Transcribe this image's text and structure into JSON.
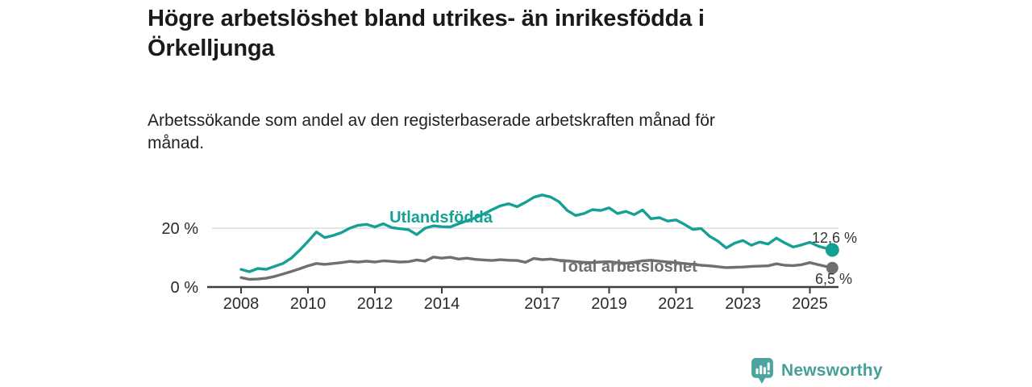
{
  "header": {
    "title": "Högre arbetslöshet bland utrikes- än inrikesfödda i\nÖrkelljunga",
    "subtitle": "Arbetssökande som andel av den registerbaserade arbetskraften månad för\nmånad."
  },
  "colors": {
    "accent_teal": "#14a193",
    "series_gray": "#6f6f6f",
    "brand_teal": "#4aa59e",
    "grid": "#dcdcdc",
    "axis": "#3d3d3d",
    "annotation_text": "#333333"
  },
  "chart_data": {
    "type": "line",
    "title": "Högre arbetslöshet bland utrikes- än inrikesfödda i Örkelljunga",
    "subtitle": "Arbetssökande som andel av den registerbaserade arbetskraften månad för månad.",
    "xlabel": "",
    "ylabel": "",
    "x_range": [
      2008,
      2025.67
    ],
    "ylim": [
      0,
      34
    ],
    "x_ticks": [
      2008,
      2010,
      2012,
      2014,
      2017,
      2019,
      2021,
      2023,
      2025
    ],
    "y_ticks": [
      {
        "value": 0,
        "label": "0 %"
      },
      {
        "value": 20,
        "label": "20 %"
      }
    ],
    "grid": "single horizontal gridline at 20 %",
    "legend_position": "inline labels next to lines",
    "series": [
      {
        "name": "Utlandsfödda",
        "color": "#14a193",
        "end_label": "12,6 %",
        "end_value": 12.6,
        "points": [
          [
            2008.0,
            6.0
          ],
          [
            2008.25,
            5.2
          ],
          [
            2008.5,
            6.3
          ],
          [
            2008.75,
            6.0
          ],
          [
            2009.0,
            7.0
          ],
          [
            2009.25,
            8.0
          ],
          [
            2009.5,
            9.8
          ],
          [
            2009.75,
            12.5
          ],
          [
            2010.0,
            15.5
          ],
          [
            2010.25,
            18.7
          ],
          [
            2010.5,
            16.8
          ],
          [
            2010.75,
            17.5
          ],
          [
            2011.0,
            18.5
          ],
          [
            2011.25,
            20.0
          ],
          [
            2011.5,
            21.0
          ],
          [
            2011.75,
            21.3
          ],
          [
            2012.0,
            20.4
          ],
          [
            2012.25,
            21.5
          ],
          [
            2012.5,
            20.2
          ],
          [
            2012.75,
            19.8
          ],
          [
            2013.0,
            19.5
          ],
          [
            2013.25,
            17.8
          ],
          [
            2013.5,
            20.0
          ],
          [
            2013.75,
            20.8
          ],
          [
            2014.0,
            20.5
          ],
          [
            2014.25,
            20.4
          ],
          [
            2014.5,
            21.5
          ],
          [
            2014.75,
            22.5
          ],
          [
            2015.0,
            23.5
          ],
          [
            2015.25,
            24.8
          ],
          [
            2015.5,
            26.3
          ],
          [
            2015.75,
            27.6
          ],
          [
            2016.0,
            28.3
          ],
          [
            2016.25,
            27.3
          ],
          [
            2016.5,
            28.8
          ],
          [
            2016.75,
            30.5
          ],
          [
            2017.0,
            31.3
          ],
          [
            2017.25,
            30.6
          ],
          [
            2017.5,
            29.0
          ],
          [
            2017.75,
            26.0
          ],
          [
            2018.0,
            24.3
          ],
          [
            2018.25,
            25.0
          ],
          [
            2018.5,
            26.3
          ],
          [
            2018.75,
            26.0
          ],
          [
            2019.0,
            26.9
          ],
          [
            2019.25,
            25.0
          ],
          [
            2019.5,
            25.7
          ],
          [
            2019.75,
            24.6
          ],
          [
            2020.0,
            26.2
          ],
          [
            2020.25,
            23.2
          ],
          [
            2020.5,
            23.6
          ],
          [
            2020.75,
            22.4
          ],
          [
            2021.0,
            22.8
          ],
          [
            2021.25,
            21.3
          ],
          [
            2021.5,
            19.6
          ],
          [
            2021.75,
            19.9
          ],
          [
            2022.0,
            17.3
          ],
          [
            2022.25,
            15.6
          ],
          [
            2022.5,
            13.3
          ],
          [
            2022.75,
            14.9
          ],
          [
            2023.0,
            15.8
          ],
          [
            2023.25,
            14.2
          ],
          [
            2023.5,
            15.3
          ],
          [
            2023.75,
            14.6
          ],
          [
            2024.0,
            16.6
          ],
          [
            2024.25,
            15.0
          ],
          [
            2024.5,
            13.6
          ],
          [
            2024.75,
            14.3
          ],
          [
            2025.0,
            15.2
          ],
          [
            2025.25,
            13.9
          ],
          [
            2025.67,
            12.6
          ]
        ]
      },
      {
        "name": "Total arbetslöshet",
        "color": "#6f6f6f",
        "end_label": "6,5 %",
        "end_value": 6.5,
        "points": [
          [
            2008.0,
            3.2
          ],
          [
            2008.25,
            2.6
          ],
          [
            2008.5,
            2.7
          ],
          [
            2008.75,
            3.0
          ],
          [
            2009.0,
            3.6
          ],
          [
            2009.25,
            4.4
          ],
          [
            2009.5,
            5.3
          ],
          [
            2009.75,
            6.2
          ],
          [
            2010.0,
            7.2
          ],
          [
            2010.25,
            8.0
          ],
          [
            2010.5,
            7.7
          ],
          [
            2010.75,
            8.0
          ],
          [
            2011.0,
            8.3
          ],
          [
            2011.25,
            8.7
          ],
          [
            2011.5,
            8.5
          ],
          [
            2011.75,
            8.8
          ],
          [
            2012.0,
            8.5
          ],
          [
            2012.25,
            8.9
          ],
          [
            2012.5,
            8.7
          ],
          [
            2012.75,
            8.5
          ],
          [
            2013.0,
            8.6
          ],
          [
            2013.25,
            9.2
          ],
          [
            2013.5,
            8.8
          ],
          [
            2013.75,
            10.2
          ],
          [
            2014.0,
            9.8
          ],
          [
            2014.25,
            10.1
          ],
          [
            2014.5,
            9.5
          ],
          [
            2014.75,
            9.8
          ],
          [
            2015.0,
            9.4
          ],
          [
            2015.25,
            9.2
          ],
          [
            2015.5,
            9.0
          ],
          [
            2015.75,
            9.3
          ],
          [
            2016.0,
            9.1
          ],
          [
            2016.25,
            9.0
          ],
          [
            2016.5,
            8.4
          ],
          [
            2016.75,
            9.7
          ],
          [
            2017.0,
            9.3
          ],
          [
            2017.25,
            9.5
          ],
          [
            2017.5,
            9.1
          ],
          [
            2017.75,
            8.9
          ],
          [
            2018.0,
            8.6
          ],
          [
            2018.25,
            8.4
          ],
          [
            2018.5,
            8.3
          ],
          [
            2018.75,
            8.5
          ],
          [
            2019.0,
            8.6
          ],
          [
            2019.25,
            8.3
          ],
          [
            2019.5,
            8.1
          ],
          [
            2019.75,
            8.4
          ],
          [
            2020.0,
            8.9
          ],
          [
            2020.25,
            9.1
          ],
          [
            2020.5,
            8.8
          ],
          [
            2020.75,
            8.5
          ],
          [
            2021.0,
            8.3
          ],
          [
            2021.25,
            8.0
          ],
          [
            2021.5,
            7.7
          ],
          [
            2021.75,
            7.4
          ],
          [
            2022.0,
            7.2
          ],
          [
            2022.25,
            6.9
          ],
          [
            2022.5,
            6.6
          ],
          [
            2022.75,
            6.7
          ],
          [
            2023.0,
            6.8
          ],
          [
            2023.25,
            7.0
          ],
          [
            2023.5,
            7.1
          ],
          [
            2023.75,
            7.2
          ],
          [
            2024.0,
            7.9
          ],
          [
            2024.25,
            7.4
          ],
          [
            2024.5,
            7.3
          ],
          [
            2024.75,
            7.6
          ],
          [
            2025.0,
            8.3
          ],
          [
            2025.25,
            7.6
          ],
          [
            2025.67,
            6.5
          ]
        ]
      }
    ]
  },
  "footer": {
    "brand": "Newsworthy"
  }
}
